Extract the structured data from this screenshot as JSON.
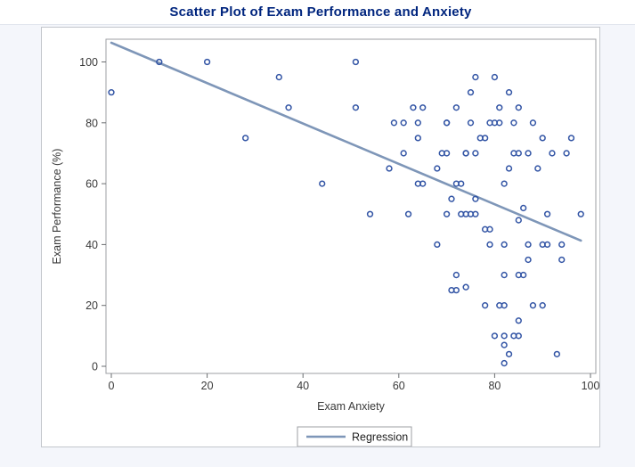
{
  "page": {
    "title": "Scatter Plot of Exam Performance and Anxiety"
  },
  "chart_data": {
    "type": "scatter",
    "title": "Scatter Plot of Exam Performance and Anxiety",
    "xlabel": "Exam Anxiety",
    "ylabel": "Exam Performance (%)",
    "xlim": [
      0,
      100
    ],
    "ylim": [
      0,
      100
    ],
    "xticks": [
      0,
      20,
      40,
      60,
      80,
      100
    ],
    "yticks": [
      0,
      20,
      40,
      60,
      80,
      100
    ],
    "grid": false,
    "legend": {
      "label": "Regression",
      "position": "bottom-center"
    },
    "regression_line": {
      "x1": 0,
      "y1": 106.3,
      "x2": 98,
      "y2": 41.3
    },
    "points": [
      [
        0,
        90
      ],
      [
        10,
        100
      ],
      [
        20,
        100
      ],
      [
        28,
        75
      ],
      [
        35,
        95
      ],
      [
        37,
        85
      ],
      [
        44,
        60
      ],
      [
        51,
        100
      ],
      [
        51,
        85
      ],
      [
        54,
        50
      ],
      [
        58,
        65
      ],
      [
        59,
        80
      ],
      [
        61,
        80
      ],
      [
        61,
        70
      ],
      [
        62,
        50
      ],
      [
        63,
        85
      ],
      [
        64,
        80
      ],
      [
        64,
        75
      ],
      [
        64,
        60
      ],
      [
        65,
        85
      ],
      [
        65,
        60
      ],
      [
        68,
        65
      ],
      [
        68,
        40
      ],
      [
        69,
        70
      ],
      [
        70,
        80
      ],
      [
        70,
        80
      ],
      [
        70,
        70
      ],
      [
        70,
        50
      ],
      [
        71,
        55
      ],
      [
        71,
        25
      ],
      [
        72,
        85
      ],
      [
        72,
        60
      ],
      [
        72,
        30
      ],
      [
        72,
        25
      ],
      [
        73,
        60
      ],
      [
        73,
        50
      ],
      [
        74,
        70
      ],
      [
        74,
        70
      ],
      [
        74,
        50
      ],
      [
        74,
        26
      ],
      [
        75,
        90
      ],
      [
        75,
        80
      ],
      [
        75,
        50
      ],
      [
        76,
        95
      ],
      [
        76,
        70
      ],
      [
        76,
        55
      ],
      [
        76,
        50
      ],
      [
        77,
        75
      ],
      [
        78,
        75
      ],
      [
        78,
        45
      ],
      [
        78,
        20
      ],
      [
        79,
        80
      ],
      [
        79,
        45
      ],
      [
        79,
        40
      ],
      [
        80,
        95
      ],
      [
        80,
        80
      ],
      [
        80,
        10
      ],
      [
        81,
        85
      ],
      [
        81,
        80
      ],
      [
        81,
        20
      ],
      [
        82,
        60
      ],
      [
        82,
        40
      ],
      [
        82,
        30
      ],
      [
        82,
        20
      ],
      [
        82,
        10
      ],
      [
        82,
        7
      ],
      [
        82,
        1
      ],
      [
        83,
        90
      ],
      [
        83,
        65
      ],
      [
        83,
        4
      ],
      [
        84,
        80
      ],
      [
        84,
        70
      ],
      [
        84,
        10
      ],
      [
        85,
        85
      ],
      [
        85,
        70
      ],
      [
        85,
        48
      ],
      [
        85,
        30
      ],
      [
        85,
        15
      ],
      [
        85,
        10
      ],
      [
        86,
        30
      ],
      [
        86,
        52
      ],
      [
        87,
        70
      ],
      [
        87,
        40
      ],
      [
        87,
        35
      ],
      [
        88,
        80
      ],
      [
        88,
        20
      ],
      [
        89,
        65
      ],
      [
        90,
        75
      ],
      [
        90,
        40
      ],
      [
        90,
        20
      ],
      [
        91,
        50
      ],
      [
        91,
        40
      ],
      [
        92,
        70
      ],
      [
        93,
        4
      ],
      [
        94,
        40
      ],
      [
        94,
        35
      ],
      [
        95,
        70
      ],
      [
        96,
        75
      ],
      [
        98,
        50
      ]
    ],
    "colors": {
      "marker": "#3355a5",
      "regression": "#7e96b8",
      "title": "#00257e",
      "axis_text": "#3a3a3a",
      "frame": "#9c9fa3",
      "tick": "#6a6d70",
      "legend_border": "#9c9fa3"
    }
  }
}
